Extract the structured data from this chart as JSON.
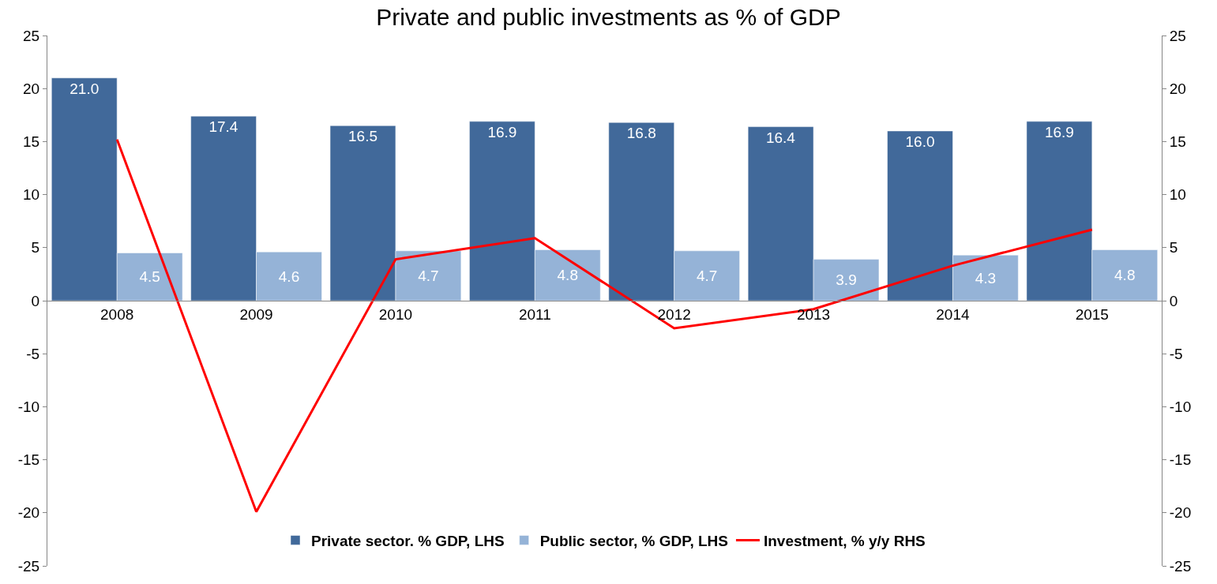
{
  "chart_data": {
    "type": "bar",
    "title": "Private and public investments as % of GDP",
    "categories": [
      "2008",
      "2009",
      "2010",
      "2011",
      "2012",
      "2013",
      "2014",
      "2015"
    ],
    "series": [
      {
        "name": "Private sector. % GDP, LHS",
        "color": "#41699a",
        "values": [
          21.0,
          17.4,
          16.5,
          16.9,
          16.8,
          16.4,
          16.0,
          16.9
        ],
        "value_labels": [
          "21.0",
          "17.4",
          "16.5",
          "16.9",
          "16.8",
          "16.4",
          "16.0",
          "16.9"
        ]
      },
      {
        "name": "Public sector, % GDP, LHS",
        "color": "#95b3d7",
        "values": [
          4.5,
          4.6,
          4.7,
          4.8,
          4.7,
          3.9,
          4.3,
          4.8
        ],
        "value_labels": [
          "4.5",
          "4.6",
          "4.7",
          "4.8",
          "4.7",
          "3.9",
          "4.3",
          "4.8"
        ]
      },
      {
        "name": "Investment, % y/y RHS",
        "type": "line",
        "axis": "y2",
        "color": "#ff0000",
        "values": [
          15.2,
          -19.9,
          3.9,
          5.9,
          -2.6,
          -0.8,
          3.3,
          6.7
        ]
      }
    ],
    "ylim": [
      -25,
      25
    ],
    "yticks": [
      -25,
      -20,
      -15,
      -10,
      -5,
      0,
      5,
      10,
      15,
      20,
      25
    ],
    "y2lim": [
      -25,
      25
    ],
    "y2ticks": [
      -25,
      -20,
      -15,
      -10,
      -5,
      0,
      5,
      10,
      15,
      20,
      25
    ],
    "grid": false,
    "legend": "bottom",
    "marker": "none",
    "line_style": "solid"
  }
}
